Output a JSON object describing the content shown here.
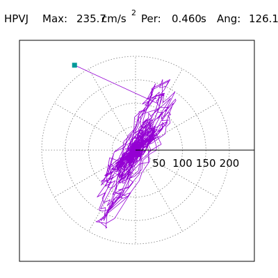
{
  "header": {
    "station": "HPVJ",
    "max_label": "Max:",
    "max_value": "235.7",
    "max_unit": "cm/s",
    "max_unit_exp": "2",
    "period_label": "Per:",
    "period_value": "0.460",
    "period_unit": "s",
    "angle_label": "Ang:",
    "angle_value": "126.1"
  },
  "chart_data": {
    "type": "scatter",
    "subtype": "polar-particle-motion",
    "title": "",
    "radial_ticks": [
      "50",
      "100",
      "150",
      "200"
    ],
    "radial_tick_values": [
      50,
      100,
      150,
      200
    ],
    "rmax": 200,
    "grid": "dotted polar (rings every 50 cm/s², spokes every 30°)",
    "trace_color": "#9400d3",
    "marker_color": "#009999",
    "marker_label": "start point",
    "start_point": {
      "x": -130,
      "y": 181
    },
    "orbit_angle_deg": 126.1,
    "max_amplitude": 235.7
  }
}
